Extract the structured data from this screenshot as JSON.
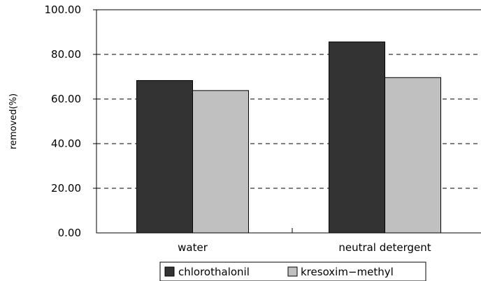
{
  "chart_data": {
    "type": "bar",
    "title": "",
    "xlabel": "",
    "ylabel": "removed(%)",
    "ylim": [
      0,
      100
    ],
    "yticks": [
      "0.00",
      "20.00",
      "40.00",
      "60.00",
      "80.00",
      "100.00"
    ],
    "grid": "horizontal dashed",
    "legend_position": "bottom",
    "categories": [
      "water",
      "neutral detergent"
    ],
    "series": [
      {
        "name": "chlorothalonil",
        "color": "#333333",
        "values": [
          68.3,
          85.6
        ]
      },
      {
        "name": "kresoxim−methyl",
        "color": "#c0c0c0",
        "values": [
          63.8,
          69.6
        ]
      }
    ]
  }
}
